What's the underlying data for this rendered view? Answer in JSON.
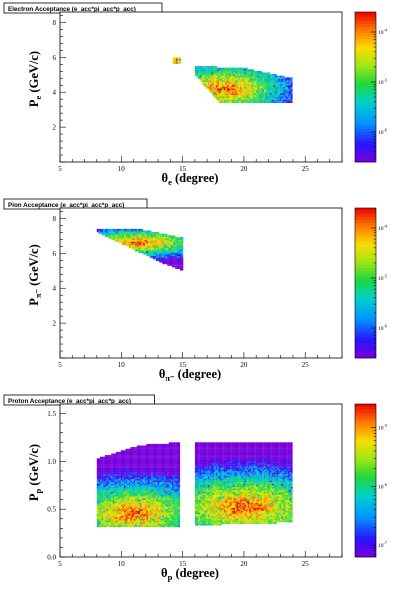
{
  "chart_data": [
    {
      "type": "heatmap",
      "title": "Electron Acceptance (e_acc*pi_acc*p_acc)",
      "xlabel": "θe (degree)",
      "xlabel_main": "θ",
      "xlabel_sub": "e",
      "xlabel_unit": " (degree)",
      "ylabel_main": "P",
      "ylabel_sub": "e",
      "ylabel_unit": " (GeV/c)",
      "xlim": [
        5,
        28
      ],
      "ylim": [
        0,
        8.6
      ],
      "xticks": [
        5,
        10,
        15,
        20,
        25
      ],
      "yticks": [
        2,
        4,
        6,
        8
      ],
      "ytick_labels": [
        "2",
        "4",
        "6",
        "8"
      ],
      "colorbar": {
        "scale": "log",
        "min_exp": -6.6,
        "max_exp": -3.6,
        "labels": [
          {
            "text": "10",
            "exp": "-4",
            "at": -4
          },
          {
            "text": "10",
            "exp": "-5",
            "at": -5
          },
          {
            "text": "10",
            "exp": "-6",
            "at": -6
          }
        ]
      },
      "regions": [
        {
          "name": "main band",
          "polygon": [
            [
              16,
              5.5
            ],
            [
              20,
              5.4
            ],
            [
              24,
              4.8
            ],
            [
              24,
              3.4
            ],
            [
              18,
              3.4
            ],
            [
              16,
              5.0
            ]
          ],
          "hot_center": [
            18.5,
            4.2
          ],
          "hot_radius": [
            3.0,
            0.9
          ],
          "direction": [
            1.0,
            -0.18
          ]
        },
        {
          "name": "small spot",
          "polygon": [
            [
              14.2,
              6.0
            ],
            [
              14.8,
              6.0
            ],
            [
              14.8,
              5.6
            ],
            [
              14.2,
              5.6
            ]
          ],
          "hot_center": [
            14.5,
            5.8
          ],
          "hot_radius": [
            0.4,
            0.3
          ],
          "direction": [
            1,
            0
          ]
        }
      ]
    },
    {
      "type": "heatmap",
      "title": "Pion Acceptance (e_acc*pi_acc*p_acc)",
      "xlabel": "θπ- (degree)",
      "xlabel_main": "θ",
      "xlabel_sub": "π⁻",
      "xlabel_unit": " (degree)",
      "ylabel_main": "P",
      "ylabel_sub": "π⁻",
      "ylabel_unit": " (GeV/c)",
      "xlim": [
        5,
        28
      ],
      "ylim": [
        0,
        8.6
      ],
      "xticks": [
        5,
        10,
        15,
        20,
        25
      ],
      "yticks": [
        2,
        4,
        6,
        8
      ],
      "ytick_labels": [
        "2",
        "4",
        "6",
        "8"
      ],
      "colorbar": {
        "scale": "log",
        "min_exp": -6.6,
        "max_exp": -3.6,
        "labels": [
          {
            "text": "10",
            "exp": "-4",
            "at": -4
          },
          {
            "text": "10",
            "exp": "-5",
            "at": -5
          },
          {
            "text": "10",
            "exp": "-6",
            "at": -6
          }
        ]
      },
      "regions": [
        {
          "name": "main band",
          "polygon": [
            [
              8.0,
              7.4
            ],
            [
              11.5,
              7.4
            ],
            [
              15.0,
              6.9
            ],
            [
              15.0,
              5.0
            ],
            [
              13.5,
              5.4
            ],
            [
              8.0,
              7.2
            ]
          ],
          "hot_center": [
            11.5,
            6.6
          ],
          "hot_radius": [
            3.3,
            0.45
          ],
          "direction": [
            1.0,
            -0.3
          ]
        }
      ]
    },
    {
      "type": "heatmap",
      "title": "Proton Acceptance (e_acc*pi_acc*p_acc)",
      "xlabel": "θp (degree)",
      "xlabel_main": "θ",
      "xlabel_sub": "p",
      "xlabel_unit": " (degree)",
      "ylabel_main": "P",
      "ylabel_sub": "p",
      "ylabel_unit": " (GeV/c)",
      "xlim": [
        5,
        28
      ],
      "ylim": [
        0,
        1.6
      ],
      "xticks": [
        5,
        10,
        15,
        20,
        25
      ],
      "yticks": [
        0.0,
        0.5,
        1.0,
        1.5
      ],
      "ytick_labels": [
        "0.0",
        "0.5",
        "1.0",
        "1.5"
      ],
      "colorbar": {
        "scale": "log",
        "min_exp": -7.2,
        "max_exp": -4.6,
        "labels": [
          {
            "text": "10",
            "exp": "-5",
            "at": -5
          },
          {
            "text": "10",
            "exp": "-6",
            "at": -6
          },
          {
            "text": "10",
            "exp": "-7",
            "at": -7
          }
        ]
      },
      "regions": [
        {
          "name": "left block",
          "polygon": [
            [
              8.0,
              1.03
            ],
            [
              11.5,
              1.17
            ],
            [
              14.8,
              1.2
            ],
            [
              14.8,
              0.32
            ],
            [
              8.0,
              0.32
            ]
          ],
          "hot_center": [
            11.0,
            0.45
          ],
          "hot_radius": [
            3.5,
            0.2
          ],
          "direction": [
            1,
            0
          ]
        },
        {
          "name": "right block",
          "polygon": [
            [
              16.0,
              1.2
            ],
            [
              24.0,
              1.2
            ],
            [
              24.0,
              0.36
            ],
            [
              16.0,
              0.33
            ]
          ],
          "hot_center": [
            20.0,
            0.52
          ],
          "hot_radius": [
            4.5,
            0.22
          ],
          "direction": [
            1,
            0
          ]
        }
      ]
    }
  ]
}
